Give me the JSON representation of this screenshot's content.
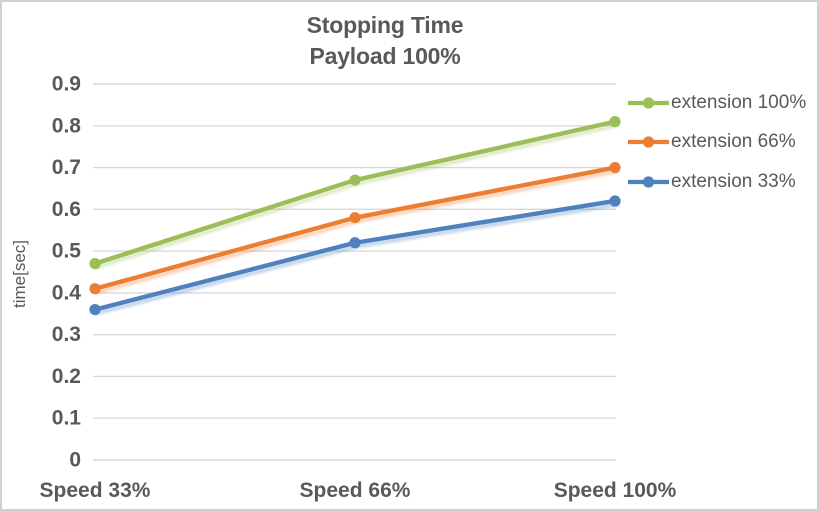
{
  "frame": {
    "background": "#FFFFFF",
    "border_color": "#D0D0D0"
  },
  "chart_data": {
    "type": "line",
    "title": "Stopping Time",
    "subtitle": "Payload 100%",
    "ylabel": "time[sec]",
    "xlabel": "",
    "categories": [
      "Speed 33%",
      "Speed 66%",
      "Speed 100%"
    ],
    "series": [
      {
        "name": "extension 100%",
        "color": "#9CBE59",
        "values": [
          0.47,
          0.67,
          0.81
        ]
      },
      {
        "name": "extension 66%",
        "color": "#ED7D31",
        "values": [
          0.41,
          0.58,
          0.7
        ]
      },
      {
        "name": "extension 33%",
        "color": "#4E81BD",
        "values": [
          0.36,
          0.52,
          0.62
        ]
      }
    ],
    "ylim": [
      0,
      0.9
    ],
    "yticks": {
      "values": [
        0,
        0.1,
        0.2,
        0.3,
        0.4,
        0.5,
        0.6,
        0.7,
        0.8,
        0.9
      ],
      "labels": [
        "0",
        "0.1",
        "0.2",
        "0.3",
        "0.4",
        "0.5",
        "0.6",
        "0.7",
        "0.8",
        "0.9"
      ]
    },
    "grid": true,
    "legend_position": "right",
    "marker": "circle",
    "text_color": "#595959",
    "grid_color": "#D9D9D9"
  }
}
